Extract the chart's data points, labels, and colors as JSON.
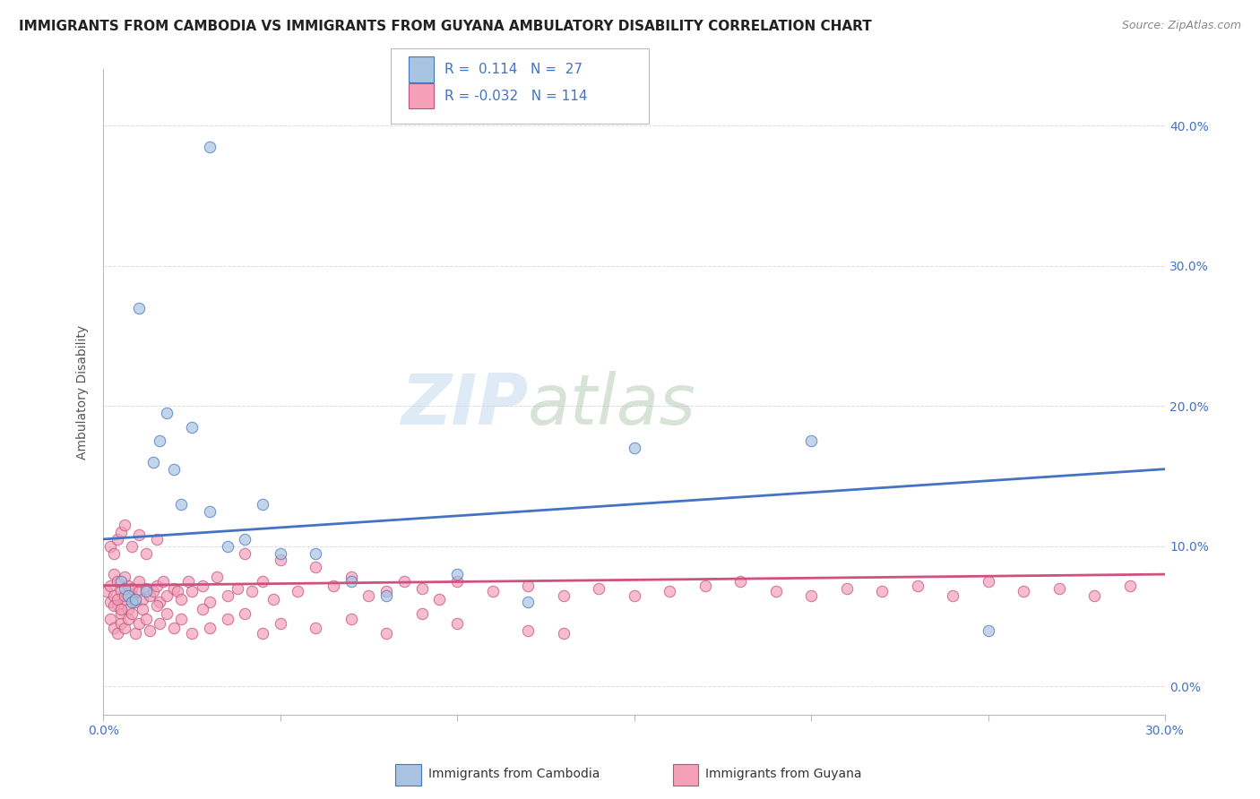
{
  "title": "IMMIGRANTS FROM CAMBODIA VS IMMIGRANTS FROM GUYANA AMBULATORY DISABILITY CORRELATION CHART",
  "source_text": "Source: ZipAtlas.com",
  "ylabel": "Ambulatory Disability",
  "xlim": [
    0.0,
    0.3
  ],
  "ylim": [
    -0.02,
    0.44
  ],
  "x_ticks": [
    0.0,
    0.05,
    0.1,
    0.15,
    0.2,
    0.25,
    0.3
  ],
  "x_tick_labels_show": [
    "0.0%",
    "",
    "",
    "",
    "",
    "",
    "30.0%"
  ],
  "y_ticks": [
    0.0,
    0.1,
    0.2,
    0.3,
    0.4
  ],
  "y_tick_labels": [
    "0.0%",
    "10.0%",
    "20.0%",
    "30.0%",
    "40.0%"
  ],
  "watermark_zip": "ZIP",
  "watermark_atlas": "atlas",
  "color_cambodia_fill": "#A8C4E0",
  "color_cambodia_edge": "#4472C4",
  "color_guyana_fill": "#F4A0B8",
  "color_guyana_edge": "#C0507A",
  "color_trend_cambodia": "#4472C4",
  "color_trend_guyana": "#D05080",
  "background_color": "#FFFFFF",
  "grid_color": "#DDDDDD",
  "tick_color": "#4472C4",
  "cambodia_x": [
    0.03,
    0.01,
    0.014,
    0.016,
    0.018,
    0.02,
    0.022,
    0.025,
    0.03,
    0.035,
    0.04,
    0.045,
    0.05,
    0.06,
    0.07,
    0.08,
    0.1,
    0.12,
    0.15,
    0.2,
    0.25,
    0.005,
    0.006,
    0.007,
    0.008,
    0.009,
    0.012
  ],
  "cambodia_y": [
    0.385,
    0.27,
    0.16,
    0.175,
    0.195,
    0.155,
    0.13,
    0.185,
    0.125,
    0.1,
    0.105,
    0.13,
    0.095,
    0.095,
    0.075,
    0.065,
    0.08,
    0.06,
    0.17,
    0.175,
    0.04,
    0.075,
    0.07,
    0.065,
    0.06,
    0.062,
    0.068
  ],
  "guyana_x": [
    0.001,
    0.002,
    0.002,
    0.003,
    0.003,
    0.004,
    0.004,
    0.005,
    0.005,
    0.006,
    0.006,
    0.007,
    0.007,
    0.008,
    0.008,
    0.009,
    0.01,
    0.01,
    0.011,
    0.012,
    0.013,
    0.014,
    0.015,
    0.016,
    0.017,
    0.018,
    0.02,
    0.021,
    0.022,
    0.024,
    0.025,
    0.028,
    0.03,
    0.032,
    0.035,
    0.038,
    0.04,
    0.042,
    0.045,
    0.048,
    0.05,
    0.055,
    0.06,
    0.065,
    0.07,
    0.075,
    0.08,
    0.085,
    0.09,
    0.095,
    0.1,
    0.11,
    0.12,
    0.13,
    0.14,
    0.15,
    0.16,
    0.17,
    0.18,
    0.19,
    0.2,
    0.21,
    0.22,
    0.23,
    0.24,
    0.25,
    0.26,
    0.27,
    0.28,
    0.29,
    0.002,
    0.003,
    0.003,
    0.004,
    0.004,
    0.005,
    0.005,
    0.006,
    0.006,
    0.007,
    0.008,
    0.009,
    0.01,
    0.011,
    0.012,
    0.013,
    0.015,
    0.016,
    0.018,
    0.02,
    0.022,
    0.025,
    0.028,
    0.03,
    0.035,
    0.04,
    0.045,
    0.05,
    0.06,
    0.07,
    0.08,
    0.09,
    0.1,
    0.12,
    0.13,
    0.002,
    0.003,
    0.004,
    0.005,
    0.006,
    0.008,
    0.01,
    0.012,
    0.015
  ],
  "guyana_y": [
    0.068,
    0.072,
    0.06,
    0.065,
    0.08,
    0.058,
    0.075,
    0.052,
    0.068,
    0.062,
    0.078,
    0.055,
    0.072,
    0.065,
    0.07,
    0.06,
    0.068,
    0.075,
    0.062,
    0.07,
    0.065,
    0.068,
    0.072,
    0.06,
    0.075,
    0.065,
    0.07,
    0.068,
    0.062,
    0.075,
    0.068,
    0.072,
    0.06,
    0.078,
    0.065,
    0.07,
    0.095,
    0.068,
    0.075,
    0.062,
    0.09,
    0.068,
    0.085,
    0.072,
    0.078,
    0.065,
    0.068,
    0.075,
    0.07,
    0.062,
    0.075,
    0.068,
    0.072,
    0.065,
    0.07,
    0.065,
    0.068,
    0.072,
    0.075,
    0.068,
    0.065,
    0.07,
    0.068,
    0.072,
    0.065,
    0.075,
    0.068,
    0.07,
    0.065,
    0.072,
    0.048,
    0.042,
    0.058,
    0.038,
    0.062,
    0.045,
    0.055,
    0.042,
    0.065,
    0.048,
    0.052,
    0.038,
    0.045,
    0.055,
    0.048,
    0.04,
    0.058,
    0.045,
    0.052,
    0.042,
    0.048,
    0.038,
    0.055,
    0.042,
    0.048,
    0.052,
    0.038,
    0.045,
    0.042,
    0.048,
    0.038,
    0.052,
    0.045,
    0.04,
    0.038,
    0.1,
    0.095,
    0.105,
    0.11,
    0.115,
    0.1,
    0.108,
    0.095,
    0.105
  ],
  "title_fontsize": 11,
  "axis_label_fontsize": 10,
  "tick_fontsize": 10,
  "legend_fontsize": 11
}
